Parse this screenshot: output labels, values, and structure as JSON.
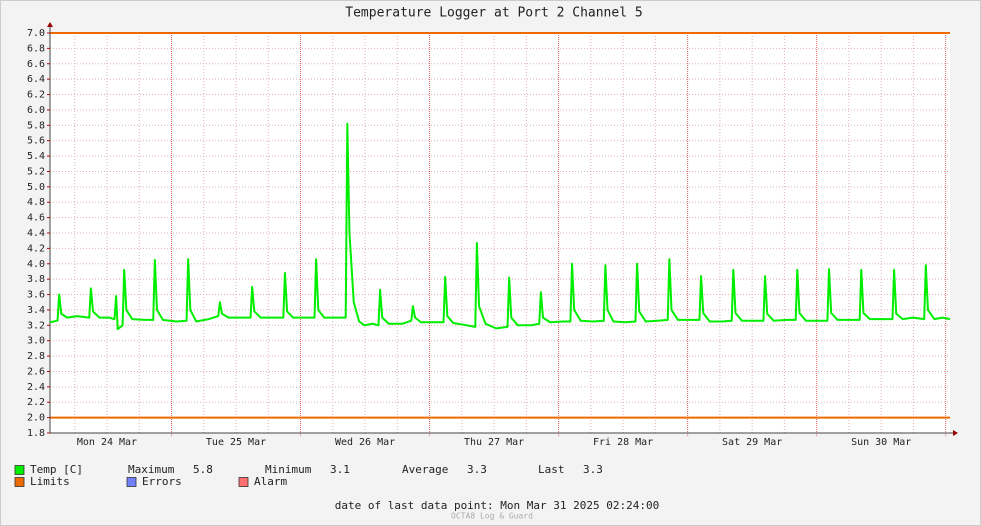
{
  "chart_data": {
    "type": "line",
    "title": "Temperature Logger at Port 2 Channel 5",
    "xlim": [
      0,
      167.4
    ],
    "ylim": [
      1.8,
      7
    ],
    "yticks": [
      {
        "value": 1.8,
        "label": "1.8"
      },
      {
        "value": 2,
        "label": "2.0"
      },
      2.2,
      2.4,
      2.6,
      2.8,
      {
        "value": 3,
        "label": "3.0"
      },
      3.2,
      3.4,
      3.6,
      3.8,
      {
        "value": 4,
        "label": "4.0"
      },
      4.2,
      4.4,
      4.6,
      4.8,
      {
        "value": 5,
        "label": "5.0"
      },
      5.2,
      5.4,
      5.6,
      5.8,
      {
        "value": 6,
        "label": "6.0"
      },
      6.2,
      6.4,
      6.6,
      6.8,
      {
        "value": 7,
        "label": "7.0"
      }
    ],
    "xticks": [
      {
        "value": 10.6,
        "label": "Mon 24 Mar"
      },
      {
        "value": 34.6,
        "label": "Tue 25 Mar"
      },
      {
        "value": 58.6,
        "label": "Wed 26 Mar"
      },
      {
        "value": 82.6,
        "label": "Thu 27 Mar"
      },
      {
        "value": 106.6,
        "label": "Fri 28 Mar"
      },
      {
        "value": 130.6,
        "label": "Sat 29 Mar"
      },
      {
        "value": 154.6,
        "label": "Sun 30 Mar"
      }
    ],
    "xgrid_major": [
      22.6,
      46.6,
      70.6,
      94.6,
      118.6,
      142.6,
      166.6
    ],
    "xgrid": [
      4.6,
      10.6,
      16.6,
      28.6,
      34.6,
      40.6,
      52.6,
      58.6,
      64.6,
      76.6,
      82.6,
      88.6,
      100.6,
      106.6,
      112.6,
      124.6,
      130.6,
      136.6,
      148.6,
      154.6,
      160.6
    ],
    "grid": true,
    "limits": {
      "name": "Limits",
      "color": "#ee6a00",
      "values": [
        2,
        7
      ]
    },
    "series": [
      {
        "name": "Temp [C]",
        "color": "#00ee00",
        "x": [
          0,
          1.4,
          1.7,
          2.1,
          3.2,
          5,
          7.3,
          7.6,
          8.0,
          9.2,
          11,
          12.0,
          12.3,
          12.6,
          13.5,
          13.8,
          14.2,
          15.3,
          17.5,
          19.2,
          19.5,
          19.9,
          21,
          23.5,
          25.4,
          25.7,
          26.1,
          27.2,
          29.5,
          31.3,
          31.6,
          32,
          33.2,
          35.5,
          37.3,
          37.6,
          38,
          39.2,
          41.5,
          43.4,
          43.7,
          44.1,
          45.2,
          47.5,
          49.2,
          49.5,
          49.9,
          51,
          53.5,
          55.0,
          55.3,
          55.7,
          56.5,
          57.5,
          58.5,
          60,
          61.1,
          61.4,
          61.8,
          63,
          65.5,
          67.2,
          67.5,
          67.9,
          69,
          71.5,
          73.2,
          73.5,
          73.9,
          75,
          77.5,
          79.1,
          79.4,
          79.8,
          81,
          83,
          85.1,
          85.4,
          85.8,
          87,
          89.5,
          91.0,
          91.3,
          91.7,
          93,
          95.5,
          96.8,
          97.1,
          97.5,
          98.7,
          101,
          103.0,
          103.3,
          103.7,
          104.8,
          107,
          108.9,
          109.2,
          109.6,
          110.8,
          113,
          114.9,
          115.2,
          115.6,
          116.8,
          119,
          120.8,
          121.1,
          121.5,
          122.7,
          125,
          126.8,
          127.1,
          127.5,
          128.7,
          131,
          132.7,
          133.0,
          133.4,
          134.6,
          137,
          138.7,
          139.0,
          139.4,
          140.6,
          143,
          144.6,
          144.9,
          145.3,
          146.5,
          149,
          150.6,
          150.9,
          151.3,
          152.5,
          155,
          156.7,
          157.0,
          157.4,
          158.6,
          160.5,
          162.6,
          162.9,
          163.3,
          164.5,
          166,
          167.4
        ],
        "values": [
          3.24,
          3.26,
          3.6,
          3.35,
          3.3,
          3.32,
          3.3,
          3.68,
          3.38,
          3.3,
          3.3,
          3.28,
          3.58,
          3.15,
          3.2,
          3.92,
          3.4,
          3.28,
          3.27,
          3.27,
          4.05,
          3.4,
          3.27,
          3.25,
          3.26,
          4.06,
          3.4,
          3.25,
          3.28,
          3.32,
          3.5,
          3.35,
          3.3,
          3.3,
          3.3,
          3.7,
          3.38,
          3.3,
          3.3,
          3.3,
          3.88,
          3.38,
          3.3,
          3.3,
          3.3,
          4.06,
          3.4,
          3.3,
          3.3,
          3.3,
          5.82,
          4.4,
          3.5,
          3.25,
          3.2,
          3.22,
          3.2,
          3.66,
          3.3,
          3.22,
          3.22,
          3.26,
          3.45,
          3.3,
          3.24,
          3.24,
          3.24,
          3.83,
          3.32,
          3.23,
          3.2,
          3.18,
          4.27,
          3.45,
          3.22,
          3.16,
          3.18,
          3.82,
          3.3,
          3.2,
          3.2,
          3.22,
          3.63,
          3.3,
          3.24,
          3.25,
          3.25,
          4.0,
          3.4,
          3.26,
          3.25,
          3.26,
          3.98,
          3.4,
          3.25,
          3.24,
          3.25,
          4.0,
          3.38,
          3.25,
          3.26,
          3.27,
          4.06,
          3.4,
          3.27,
          3.27,
          3.27,
          3.84,
          3.36,
          3.25,
          3.25,
          3.26,
          3.92,
          3.36,
          3.26,
          3.26,
          3.26,
          3.84,
          3.35,
          3.26,
          3.27,
          3.27,
          3.92,
          3.36,
          3.26,
          3.26,
          3.26,
          3.93,
          3.36,
          3.27,
          3.27,
          3.27,
          3.92,
          3.36,
          3.28,
          3.28,
          3.28,
          3.92,
          3.35,
          3.28,
          3.3,
          3.28,
          3.98,
          3.4,
          3.28,
          3.3,
          3.28
        ]
      }
    ],
    "stats": [
      {
        "label": "Maximum",
        "value": 5.8
      },
      {
        "label": "Minimum",
        "value": 3.1
      },
      {
        "label": "Average",
        "value": 3.3
      },
      {
        "label": "Last",
        "value": 3.3
      }
    ],
    "legend_extra": [
      {
        "name": "Errors",
        "color": "#7080ff"
      },
      {
        "name": "Alarm",
        "color": "#ff7070"
      }
    ],
    "footer": "date of last data point:  Mon Mar 31 2025 02:24:00",
    "credit": "OCTA8 Log & Guard"
  }
}
